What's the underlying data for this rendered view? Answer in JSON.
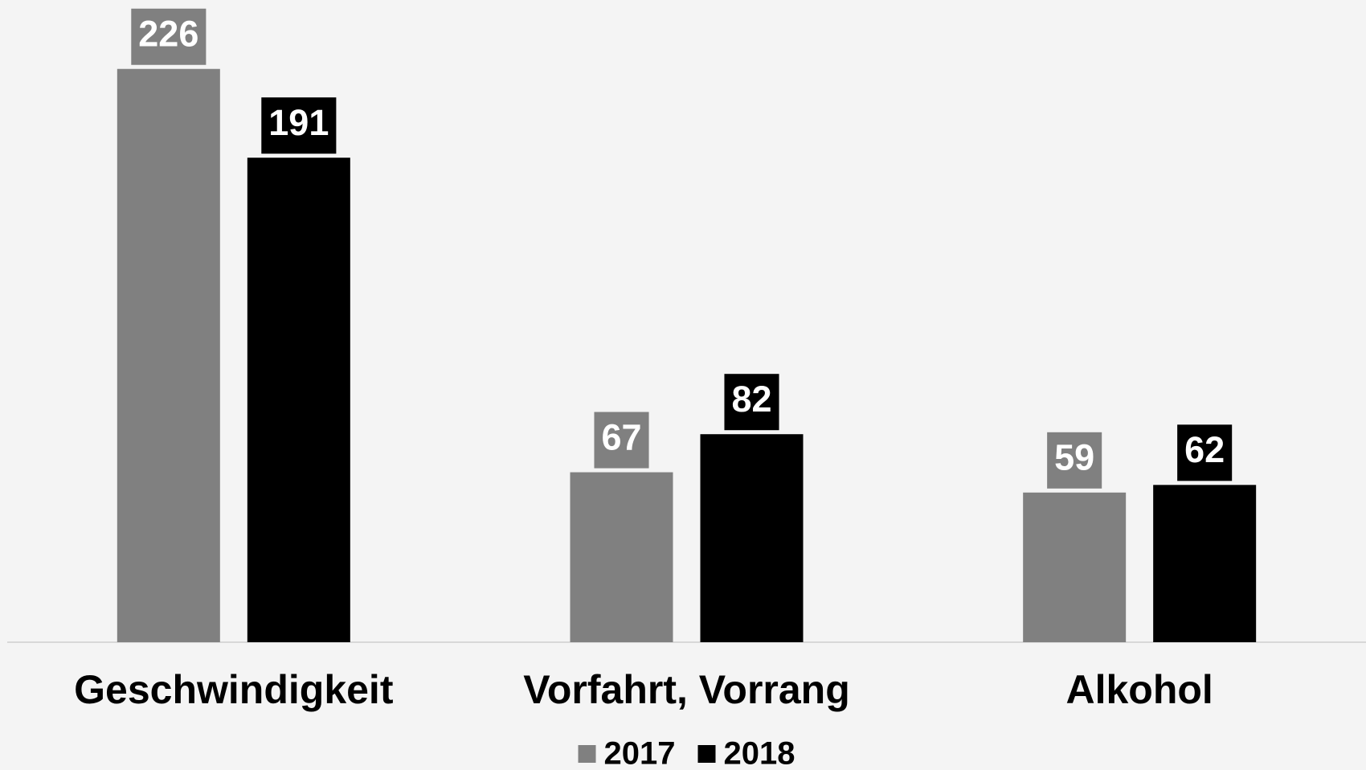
{
  "chart_data": {
    "type": "bar",
    "categories": [
      "Geschwindigkeit",
      "Vorfahrt, Vorrang",
      "Alkohol"
    ],
    "series": [
      {
        "name": "2017",
        "color": "#808080",
        "values": [
          226,
          67,
          59
        ]
      },
      {
        "name": "2018",
        "color": "#000000",
        "values": [
          191,
          82,
          62
        ]
      }
    ],
    "ylim": [
      0,
      250
    ],
    "grid": false,
    "legend": "bottom"
  }
}
